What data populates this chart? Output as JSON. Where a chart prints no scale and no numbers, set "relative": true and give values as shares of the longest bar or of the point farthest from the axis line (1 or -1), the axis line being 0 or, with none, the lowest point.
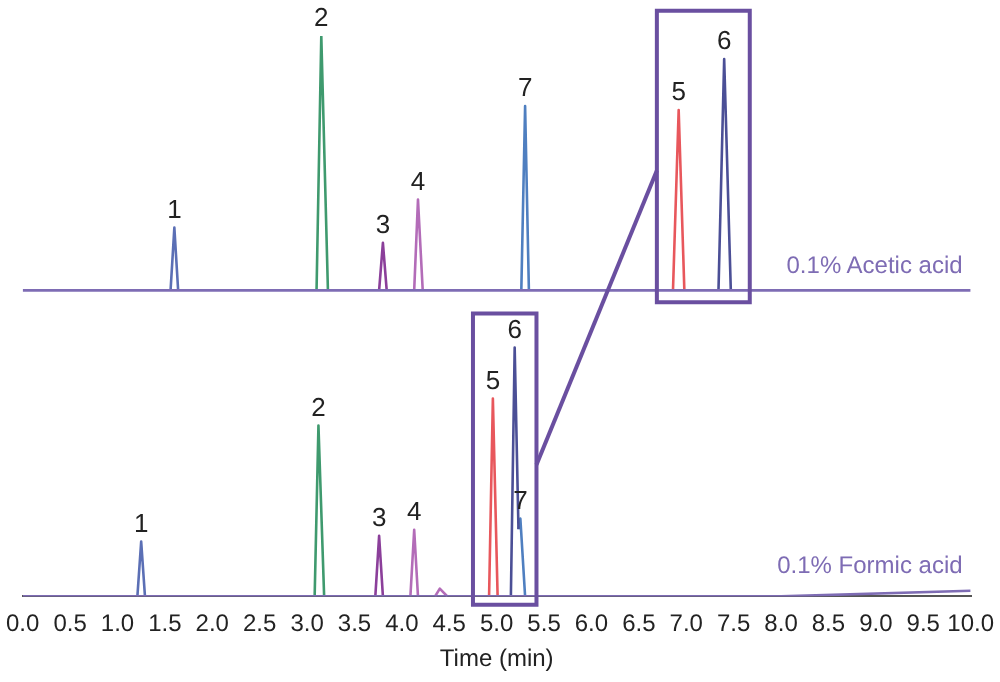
{
  "chart_data": {
    "type": "line",
    "relative": true,
    "xlabel": "Time (min)",
    "xlim": [
      0,
      10
    ],
    "xticks": [
      {
        "value": 0,
        "label": "0.0"
      },
      {
        "value": 0.5,
        "label": "0.5"
      },
      {
        "value": 1,
        "label": "1.0"
      },
      {
        "value": 1.5,
        "label": "1.5"
      },
      {
        "value": 2,
        "label": "2.0"
      },
      {
        "value": 2.5,
        "label": "2.5"
      },
      {
        "value": 3,
        "label": "3.0"
      },
      {
        "value": 3.5,
        "label": "3.5"
      },
      {
        "value": 4,
        "label": "4.0"
      },
      {
        "value": 4.5,
        "label": "4.5"
      },
      {
        "value": 5,
        "label": "5.0"
      },
      {
        "value": 5.5,
        "label": "5.5"
      },
      {
        "value": 6,
        "label": "6.0"
      },
      {
        "value": 6.5,
        "label": "6.5"
      },
      {
        "value": 7,
        "label": "7.0"
      },
      {
        "value": 7.5,
        "label": "7.5"
      },
      {
        "value": 8,
        "label": "8.0"
      },
      {
        "value": 8.5,
        "label": "8.5"
      },
      {
        "value": 9,
        "label": "9.0"
      },
      {
        "value": 9.5,
        "label": "9.5"
      },
      {
        "value": 10,
        "label": "10.0"
      }
    ],
    "series": [
      {
        "name": "0.1% Acetic acid",
        "color": "#7e6cb4",
        "x": [
          0,
          10
        ],
        "values": [
          0.546,
          0.546
        ]
      },
      {
        "color": "#5b6fb5",
        "x": [
          1.56,
          1.6,
          1.64
        ],
        "values": [
          0.546,
          0.658,
          0.546
        ]
      },
      {
        "color": "#3f9a6e",
        "x": [
          3.1,
          3.15,
          3.22
        ],
        "values": [
          0.546,
          1.0,
          0.546
        ]
      },
      {
        "color": "#8b3f9a",
        "x": [
          3.76,
          3.8,
          3.84
        ],
        "values": [
          0.546,
          0.631,
          0.546
        ]
      },
      {
        "color": "#b36cb8",
        "x": [
          4.13,
          4.17,
          4.22
        ],
        "values": [
          0.546,
          0.708,
          0.546
        ]
      },
      {
        "color": "#4f7fc0",
        "x": [
          5.26,
          5.3,
          5.34
        ],
        "values": [
          0.546,
          0.875,
          0.546
        ]
      },
      {
        "color": "#e8575c",
        "x": [
          6.86,
          6.92,
          6.98
        ],
        "values": [
          0.546,
          0.868,
          0.546
        ]
      },
      {
        "color": "#4b4f96",
        "x": [
          7.34,
          7.4,
          7.47
        ],
        "values": [
          0.546,
          0.959,
          0.546
        ]
      },
      {
        "name": "0.1% Formic acid",
        "color": "#7e6cb4",
        "x": [
          0,
          8,
          10
        ],
        "values": [
          0,
          0,
          0.01
        ]
      },
      {
        "color": "#5b6fb5",
        "x": [
          1.21,
          1.25,
          1.29
        ],
        "values": [
          0,
          0.098,
          0
        ]
      },
      {
        "color": "#3f9a6e",
        "x": [
          3.08,
          3.12,
          3.18
        ],
        "values": [
          0,
          0.305,
          0
        ]
      },
      {
        "color": "#8b3f9a",
        "x": [
          3.72,
          3.76,
          3.8
        ],
        "values": [
          0,
          0.108,
          0
        ]
      },
      {
        "color": "#b36cb8",
        "x": [
          4.09,
          4.13,
          4.17
        ],
        "values": [
          0,
          0.119,
          0
        ]
      },
      {
        "color": "#b36cb8",
        "x": [
          4.35,
          4.4,
          4.48
        ],
        "values": [
          0,
          0.014,
          0
        ]
      },
      {
        "color": "#e8575c",
        "x": [
          4.92,
          4.96,
          5.01
        ],
        "values": [
          0,
          0.353,
          0
        ]
      },
      {
        "color": "#4b4f96",
        "x": [
          5.15,
          5.19,
          5.23
        ],
        "values": [
          0,
          0.444,
          0.12
        ]
      },
      {
        "color": "#4f7fc0",
        "x": [
          5.23,
          5.25,
          5.3
        ],
        "values": [
          0.12,
          0.139,
          0
        ]
      }
    ],
    "annotations": [
      {
        "text": "1",
        "x": 1.6,
        "y": 0.658
      },
      {
        "text": "2",
        "x": 3.15,
        "y": 1.0
      },
      {
        "text": "3",
        "x": 3.8,
        "y": 0.631
      },
      {
        "text": "4",
        "x": 4.17,
        "y": 0.708
      },
      {
        "text": "7",
        "x": 5.3,
        "y": 0.875
      },
      {
        "text": "5",
        "x": 6.92,
        "y": 0.868
      },
      {
        "text": "6",
        "x": 7.4,
        "y": 0.959
      },
      {
        "text": "1",
        "x": 1.25,
        "y": 0.098
      },
      {
        "text": "2",
        "x": 3.12,
        "y": 0.305
      },
      {
        "text": "3",
        "x": 3.76,
        "y": 0.108
      },
      {
        "text": "4",
        "x": 4.13,
        "y": 0.119
      },
      {
        "text": "5",
        "x": 4.96,
        "y": 0.353
      },
      {
        "text": "6",
        "x": 5.19,
        "y": 0.444
      },
      {
        "text": "7",
        "x": 5.25,
        "y": 0.139
      }
    ],
    "grid": false,
    "legend": false
  }
}
